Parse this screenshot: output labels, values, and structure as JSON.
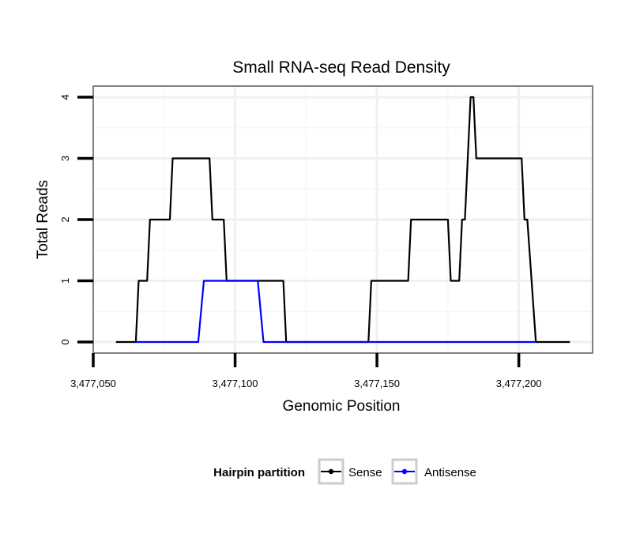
{
  "chart_data": {
    "type": "line",
    "title": "Small RNA-seq Read Density",
    "xlabel": "Genomic Position",
    "ylabel": "Total Reads",
    "xlim": [
      3477050,
      3477226
    ],
    "ylim": [
      -0.18,
      4.18
    ],
    "x_ticks": [
      3477050,
      3477100,
      3477150,
      3477200
    ],
    "x_tick_labels": [
      "3,477,050",
      "3,477,100",
      "3,477,150",
      "3,477,200"
    ],
    "y_ticks": [
      0,
      1,
      2,
      3,
      4
    ],
    "y_tick_labels": [
      "0",
      "1",
      "2",
      "3",
      "4"
    ],
    "legend": {
      "title": "Hairpin partition",
      "position": "bottom",
      "entries": [
        "Sense",
        "Antisense"
      ]
    },
    "series": [
      {
        "name": "Sense",
        "color": "#000000",
        "x": [
          3477058,
          3477065,
          3477066,
          3477068,
          3477069,
          3477070,
          3477076,
          3477077,
          3477078,
          3477090,
          3477091,
          3477092,
          3477096,
          3477097,
          3477098,
          3477116,
          3477117,
          3477118,
          3477146,
          3477147,
          3477148,
          3477160,
          3477161,
          3477162,
          3477175,
          3477176,
          3477178,
          3477179,
          3477180,
          3477181,
          3477182,
          3477183,
          3477184,
          3477185,
          3477186,
          3477200,
          3477201,
          3477202,
          3477203,
          3477206,
          3477207,
          3477218
        ],
        "y": [
          0,
          0,
          1,
          1,
          1,
          2,
          2,
          2,
          3,
          3,
          3,
          2,
          2,
          1,
          1,
          1,
          1,
          0,
          0,
          0,
          1,
          1,
          1,
          2,
          2,
          1,
          1,
          1,
          2,
          2,
          3,
          4,
          4,
          3,
          3,
          3,
          3,
          2,
          2,
          0,
          0,
          0
        ]
      },
      {
        "name": "Antisense",
        "color": "#0000ff",
        "x": [
          3477065,
          3477087,
          3477089,
          3477108,
          3477110,
          3477206
        ],
        "y": [
          0,
          0,
          1,
          1,
          0,
          0
        ]
      }
    ]
  }
}
